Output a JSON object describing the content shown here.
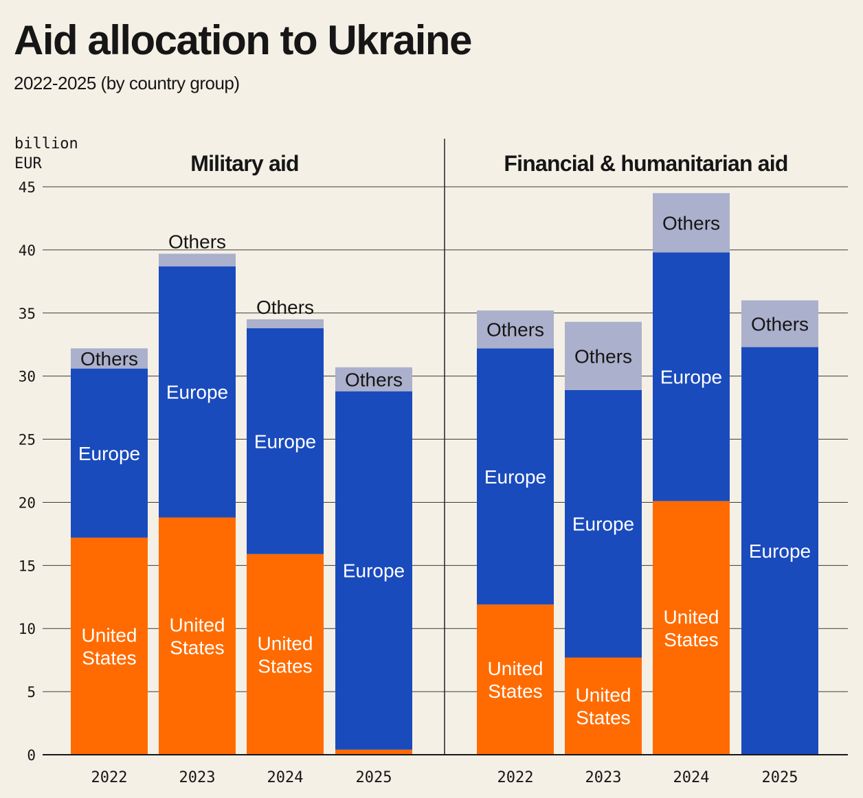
{
  "chart_data": {
    "type": "bar",
    "stacked": true,
    "title": "Aid allocation to Ukraine",
    "subtitle": "2022-2025 (by country group)",
    "ylabel": "billion EUR",
    "ylabel_lines": [
      "billion",
      "EUR"
    ],
    "ylim": [
      0,
      45
    ],
    "yticks": [
      0,
      5,
      10,
      15,
      20,
      25,
      30,
      35,
      40,
      45
    ],
    "grid": true,
    "colors": {
      "United States": "#ff6b00",
      "Europe": "#1a4bbd",
      "Others": "#abb0cc"
    },
    "panels": [
      {
        "title": "Military aid",
        "categories": [
          "2022",
          "2023",
          "2024",
          "2025"
        ],
        "series": [
          {
            "name": "United States",
            "label_lines": [
              "United",
              "States"
            ],
            "values": [
              17.2,
              18.8,
              15.9,
              0.4
            ]
          },
          {
            "name": "Europe",
            "label_lines": [
              "Europe"
            ],
            "values": [
              13.4,
              19.9,
              17.9,
              28.4
            ]
          },
          {
            "name": "Others",
            "label_lines": [
              "Others"
            ],
            "values": [
              1.6,
              1.0,
              0.7,
              1.9
            ]
          }
        ]
      },
      {
        "title": "Financial & humanitarian aid",
        "categories": [
          "2022",
          "2023",
          "2024",
          "2025"
        ],
        "series": [
          {
            "name": "United States",
            "label_lines": [
              "United",
              "States"
            ],
            "values": [
              11.9,
              7.7,
              20.1,
              0
            ]
          },
          {
            "name": "Europe",
            "label_lines": [
              "Europe"
            ],
            "values": [
              20.3,
              21.2,
              19.7,
              32.3
            ]
          },
          {
            "name": "Others",
            "label_lines": [
              "Others"
            ],
            "values": [
              3.0,
              5.4,
              4.7,
              3.7
            ]
          }
        ]
      }
    ]
  }
}
